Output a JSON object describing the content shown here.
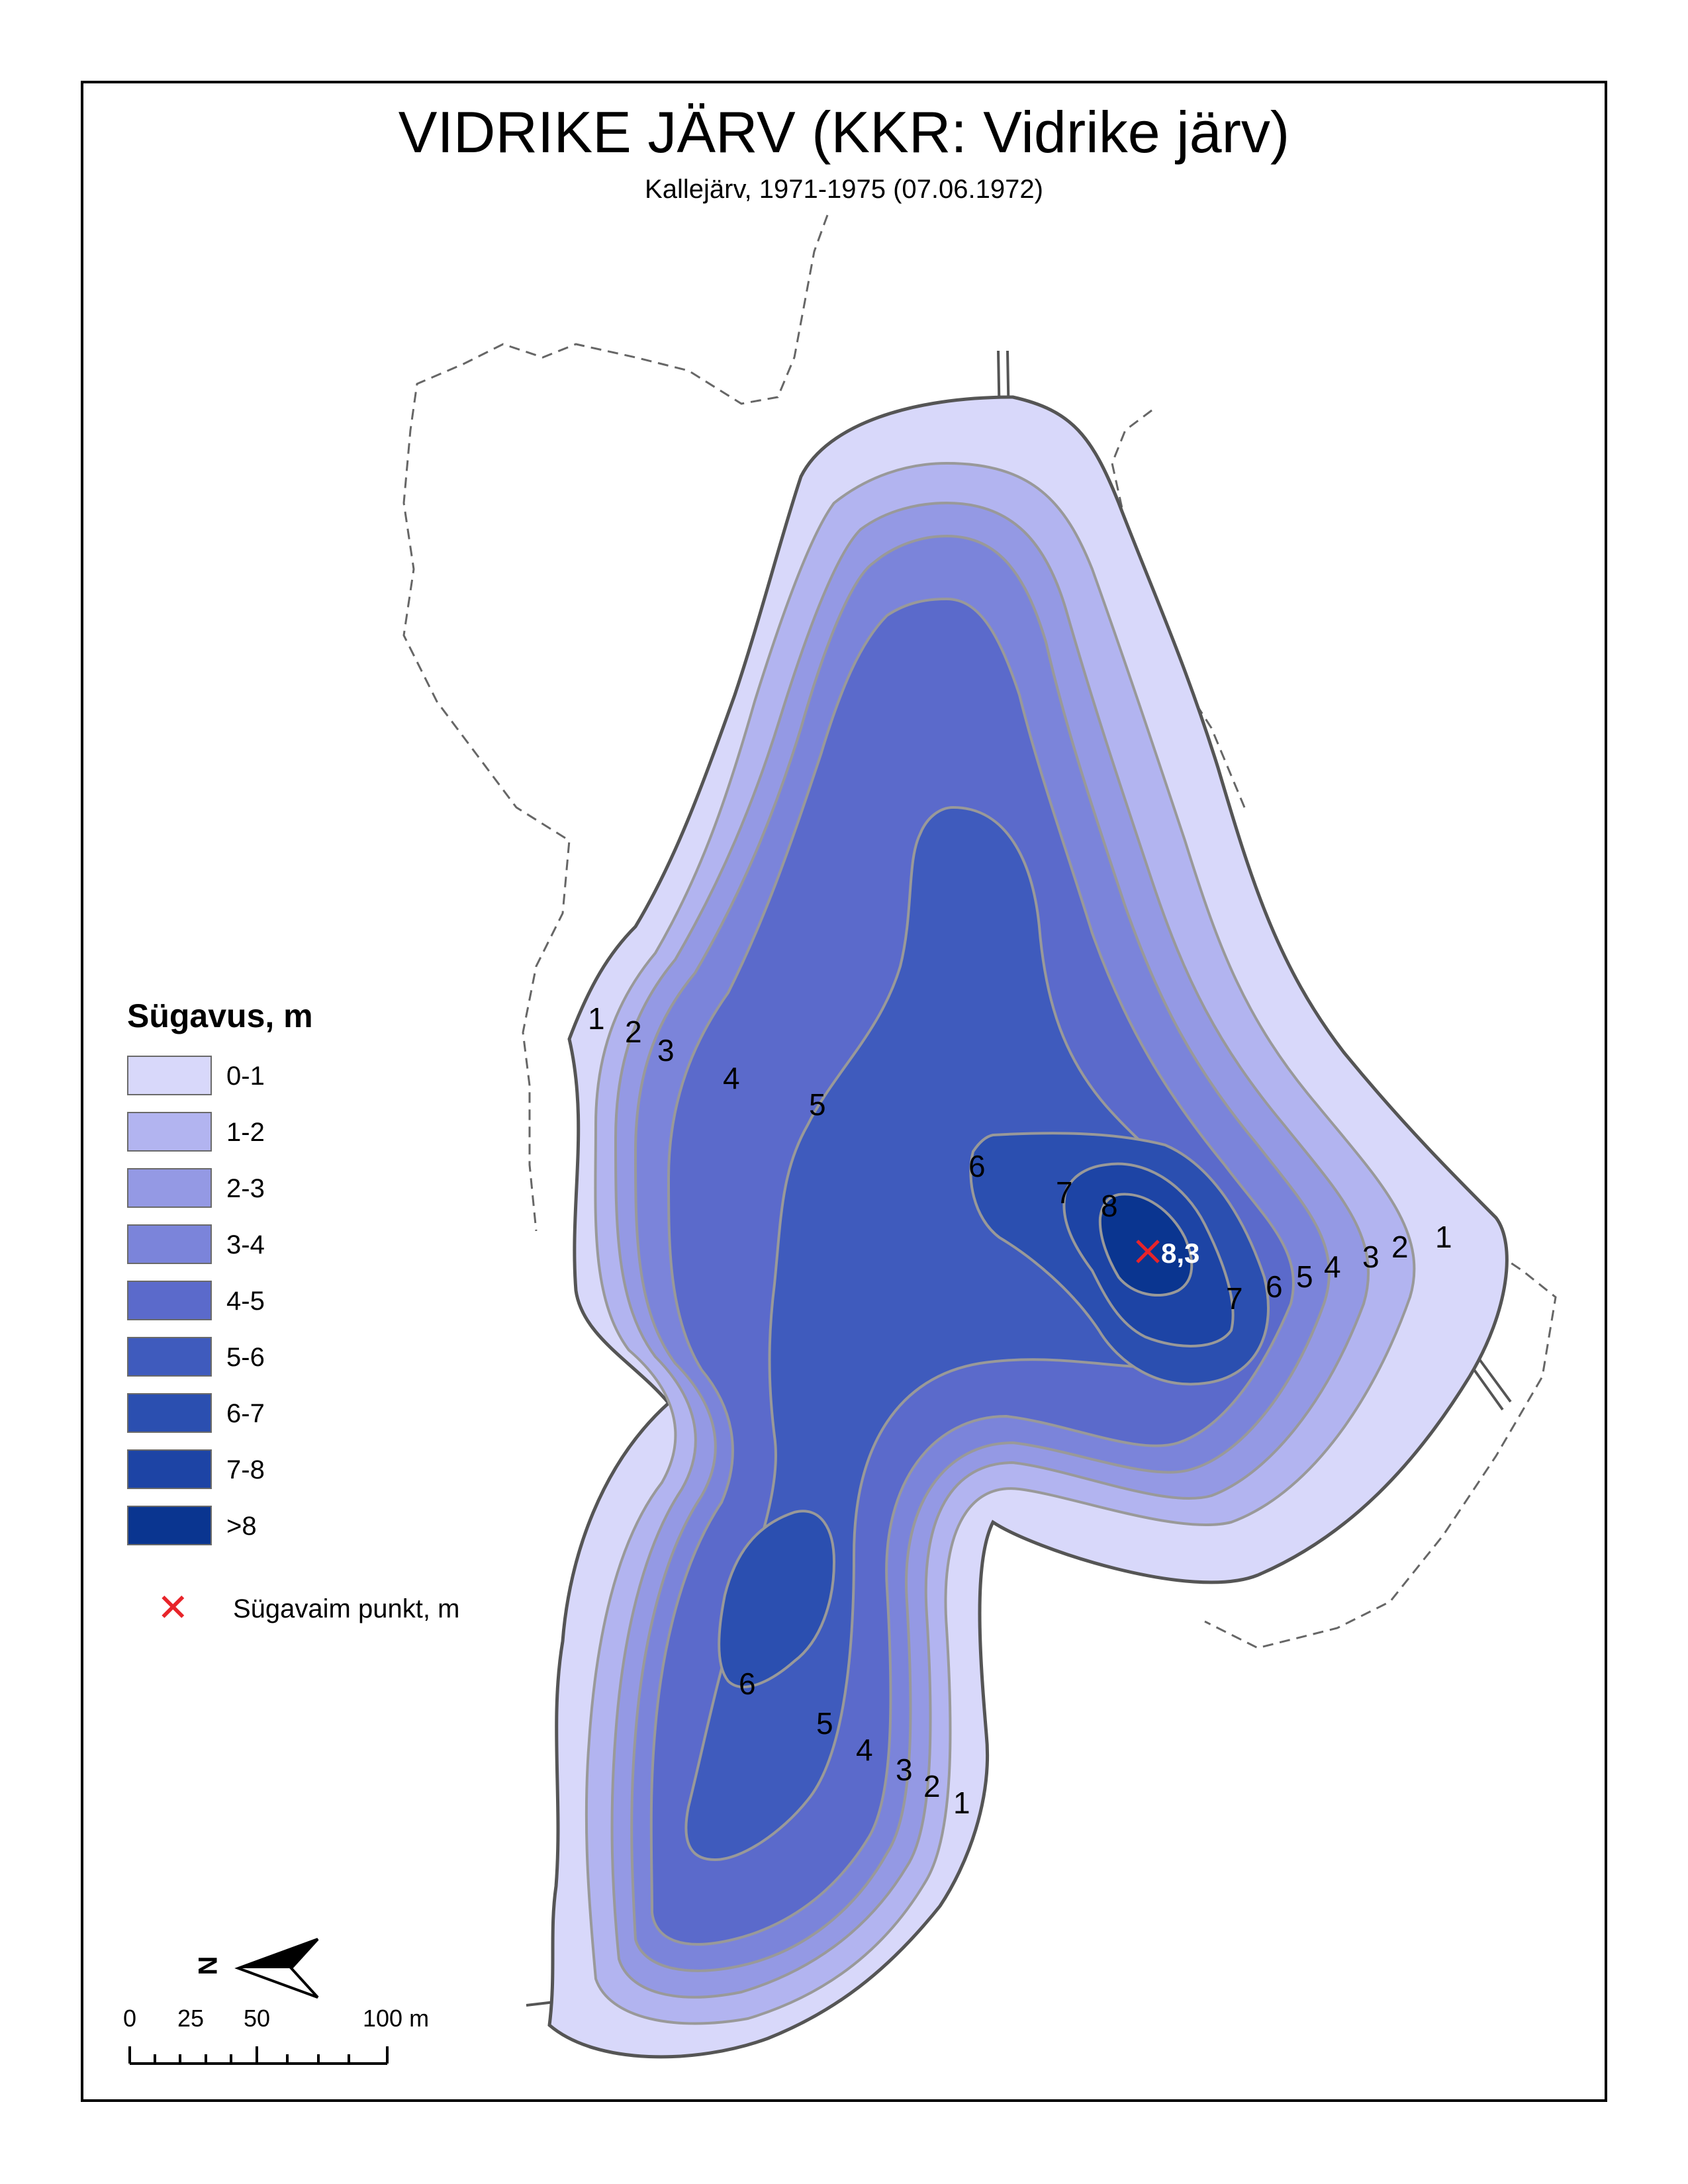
{
  "title": "VIDRIKE JÄRV (KKR: Vidrike järv)",
  "subtitle": "Kallejärv, 1971-1975 (07.06.1972)",
  "legend": {
    "title": "Sügavus, m",
    "items": [
      {
        "label": "0-1",
        "color": "#d8d8fa"
      },
      {
        "label": "1-2",
        "color": "#b2b4f0"
      },
      {
        "label": "2-3",
        "color": "#9499e4"
      },
      {
        "label": "3-4",
        "color": "#7b84da"
      },
      {
        "label": "4-5",
        "color": "#5b6acb"
      },
      {
        "label": "5-6",
        "color": "#3f5bbd"
      },
      {
        "label": "6-7",
        "color": "#2b4fb0"
      },
      {
        "label": "7-8",
        "color": "#1d44a5"
      },
      {
        "label": ">8",
        "color": "#0a3590"
      }
    ],
    "deepest_point_label": "Sügavaim punkt, m"
  },
  "deepest_point": {
    "value": "8,3",
    "marker_color": "#e8242a"
  },
  "contour_labels": {
    "west": [
      "1",
      "2",
      "3",
      "4",
      "5"
    ],
    "east": [
      "1",
      "2",
      "3",
      "4",
      "5",
      "6",
      "7"
    ],
    "center": [
      "6",
      "7",
      "8"
    ],
    "south": [
      "6",
      "5",
      "4",
      "3",
      "2",
      "1"
    ]
  },
  "north_arrow": {
    "label": "N",
    "icon": "north-arrow-icon"
  },
  "scale_bar": {
    "labels": [
      "0",
      "25",
      "50",
      "100 m"
    ]
  }
}
